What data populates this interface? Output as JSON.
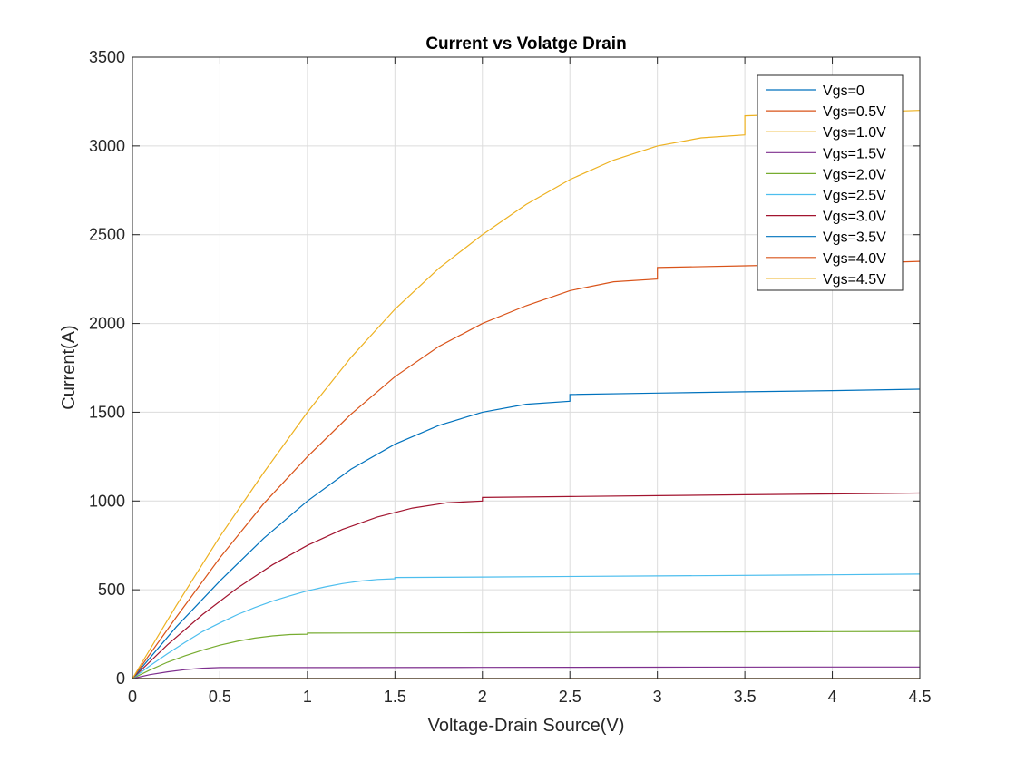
{
  "chart_data": {
    "type": "line",
    "title": "Current vs Volatge Drain",
    "xlabel": "Voltage-Drain Source(V)",
    "ylabel": "Current(A)",
    "xlim": [
      0,
      4.5
    ],
    "ylim": [
      0,
      3500
    ],
    "xticks": [
      0,
      0.5,
      1,
      1.5,
      2,
      2.5,
      3,
      3.5,
      4,
      4.5
    ],
    "xtick_labels": [
      "0",
      "0.5",
      "1",
      "1.5",
      "2",
      "2.5",
      "3",
      "3.5",
      "4",
      "4.5"
    ],
    "yticks": [
      0,
      500,
      1000,
      1500,
      2000,
      2500,
      3000,
      3500
    ],
    "ytick_labels": [
      "0",
      "500",
      "1000",
      "1500",
      "2000",
      "2500",
      "3000",
      "3500"
    ],
    "grid": true,
    "legend_position": "top-right",
    "series": [
      {
        "name": "Vgs=0",
        "color": "#0072BD",
        "x": [
          0,
          4.5
        ],
        "y": [
          0,
          0
        ]
      },
      {
        "name": "Vgs=0.5V",
        "color": "#D95319",
        "x": [
          0,
          4.5
        ],
        "y": [
          0,
          0
        ]
      },
      {
        "name": "Vgs=1.0V",
        "color": "#EDB120",
        "x": [
          0,
          4.5
        ],
        "y": [
          0,
          0
        ]
      },
      {
        "name": "Vgs=1.5V",
        "color": "#7E2F8E",
        "x": [
          0,
          0.1,
          0.2,
          0.3,
          0.4,
          0.5,
          0.5,
          1.0,
          2.0,
          3.0,
          4.0,
          4.5
        ],
        "y": [
          0,
          22,
          38,
          50,
          58,
          62,
          62,
          62,
          63,
          64,
          65,
          65
        ]
      },
      {
        "name": "Vgs=2.0V",
        "color": "#77AC30",
        "x": [
          0,
          0.1,
          0.2,
          0.3,
          0.4,
          0.5,
          0.6,
          0.7,
          0.8,
          0.9,
          1.0,
          1.0,
          2.0,
          3.0,
          4.0,
          4.5
        ],
        "y": [
          0,
          48,
          92,
          128,
          160,
          188,
          210,
          228,
          240,
          248,
          250,
          256,
          258,
          261,
          264,
          265
        ]
      },
      {
        "name": "Vgs=2.5V",
        "color": "#4DBEEE",
        "x": [
          0,
          0.1,
          0.2,
          0.3,
          0.4,
          0.5,
          0.6,
          0.7,
          0.8,
          0.9,
          1.0,
          1.1,
          1.2,
          1.3,
          1.4,
          1.5,
          1.5,
          2.0,
          3.0,
          4.0,
          4.5
        ],
        "y": [
          0,
          72,
          140,
          204,
          264,
          313,
          360,
          400,
          436,
          466,
          494,
          516,
          535,
          549,
          558,
          562,
          569,
          572,
          578,
          584,
          588
        ]
      },
      {
        "name": "Vgs=3.0V",
        "color": "#A2142F",
        "x": [
          0,
          0.2,
          0.4,
          0.6,
          0.8,
          1.0,
          1.2,
          1.4,
          1.6,
          1.8,
          2.0,
          2.0,
          2.5,
          3.0,
          3.5,
          4.0,
          4.5
        ],
        "y": [
          0,
          190,
          360,
          510,
          640,
          750,
          840,
          910,
          960,
          990,
          1000,
          1020,
          1025,
          1030,
          1035,
          1040,
          1045
        ]
      },
      {
        "name": "Vgs=3.5V",
        "color": "#0072BD",
        "x": [
          0,
          0.25,
          0.5,
          0.75,
          1.0,
          1.25,
          1.5,
          1.75,
          2.0,
          2.25,
          2.5,
          2.5,
          3.0,
          3.5,
          4.0,
          4.5
        ],
        "y": [
          0,
          290,
          550,
          790,
          1000,
          1180,
          1320,
          1425,
          1500,
          1545,
          1562,
          1600,
          1608,
          1615,
          1622,
          1630
        ]
      },
      {
        "name": "Vgs=4.0V",
        "color": "#D95319",
        "x": [
          0,
          0.25,
          0.5,
          0.75,
          1.0,
          1.25,
          1.5,
          1.75,
          2.0,
          2.25,
          2.5,
          2.75,
          3.0,
          3.0,
          3.5,
          4.0,
          4.5
        ],
        "y": [
          0,
          345,
          680,
          985,
          1250,
          1490,
          1700,
          1870,
          2000,
          2100,
          2185,
          2235,
          2250,
          2315,
          2325,
          2335,
          2350
        ]
      },
      {
        "name": "Vgs=4.5V",
        "color": "#EDB120",
        "x": [
          0,
          0.25,
          0.5,
          0.75,
          1.0,
          1.25,
          1.5,
          1.75,
          2.0,
          2.25,
          2.5,
          2.75,
          3.0,
          3.25,
          3.5,
          3.5,
          4.0,
          4.5
        ],
        "y": [
          0,
          410,
          800,
          1160,
          1500,
          1810,
          2080,
          2310,
          2500,
          2670,
          2810,
          2920,
          3000,
          3045,
          3062,
          3170,
          3185,
          3200
        ]
      }
    ]
  }
}
